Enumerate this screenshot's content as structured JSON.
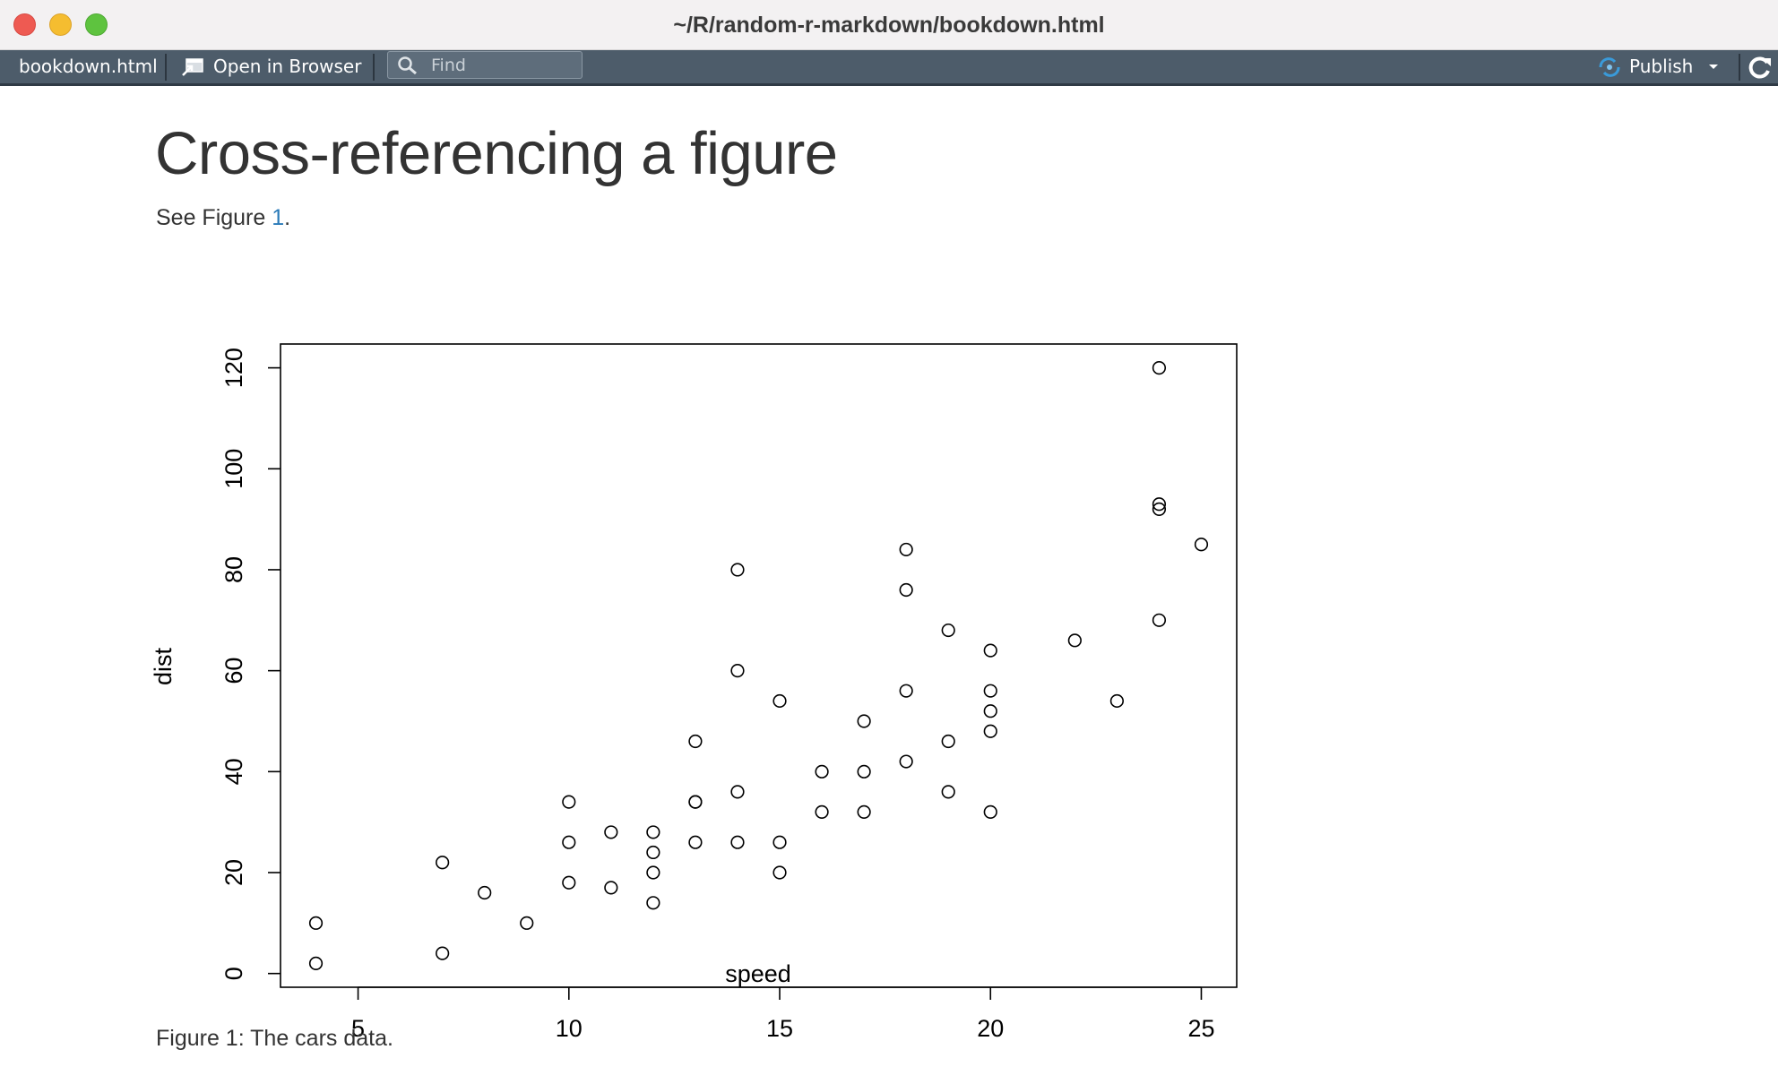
{
  "window": {
    "title": "~/R/random-r-markdown/bookdown.html"
  },
  "toolbar": {
    "filename": "bookdown.html",
    "open_in_browser_label": "Open in Browser",
    "find_placeholder": "Find",
    "publish_label": "Publish"
  },
  "icons": {
    "browser": "open-in-browser-icon",
    "search": "search-icon",
    "publish": "publish-icon",
    "dropdown": "chevron-down-icon",
    "refresh": "refresh-icon"
  },
  "colors": {
    "toolbar_bg": "#4d5c6a",
    "link": "#2a7ab8",
    "publish_accent": "#3a9ad9"
  },
  "page": {
    "heading": "Cross-referencing a figure",
    "paragraph_prefix": "See Figure ",
    "figure_ref_link": "1",
    "paragraph_suffix": ".",
    "caption": "Figure 1: The cars data."
  },
  "chart_data": {
    "type": "scatter",
    "title": "",
    "xlabel": "speed",
    "ylabel": "dist",
    "xlim": [
      3.16,
      25.84
    ],
    "ylim": [
      -2.72,
      124.72
    ],
    "xticks": [
      5,
      10,
      15,
      20,
      25
    ],
    "yticks": [
      0,
      20,
      40,
      60,
      80,
      100,
      120
    ],
    "grid": false,
    "marker": "open-circle",
    "series": [
      {
        "x": [
          4,
          4,
          7,
          7,
          8,
          9,
          10,
          10,
          10,
          11,
          11,
          12,
          12,
          12,
          12,
          13,
          13,
          13,
          13,
          14,
          14,
          14,
          14,
          15,
          15,
          15,
          16,
          16,
          17,
          17,
          17,
          18,
          18,
          18,
          18,
          19,
          19,
          19,
          20,
          20,
          20,
          20,
          20,
          22,
          23,
          24,
          24,
          24,
          24,
          25
        ],
        "y": [
          2,
          10,
          4,
          22,
          16,
          10,
          18,
          26,
          34,
          17,
          28,
          14,
          20,
          24,
          28,
          26,
          34,
          34,
          46,
          26,
          36,
          60,
          80,
          20,
          26,
          54,
          32,
          40,
          32,
          40,
          50,
          42,
          56,
          76,
          84,
          36,
          46,
          68,
          32,
          48,
          52,
          56,
          64,
          66,
          54,
          70,
          92,
          93,
          120,
          85
        ]
      }
    ]
  }
}
